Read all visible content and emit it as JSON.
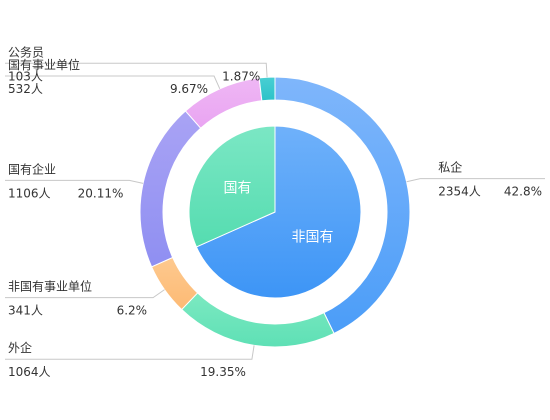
{
  "chart_data": [
    {
      "type": "pie",
      "variant": "donut",
      "series_role": "outer-ring",
      "slices": [
        {
          "name": "私企",
          "count_label": "2354人",
          "percent_label": "42.8%",
          "value": 42.8,
          "color": "#4b9df8",
          "color2": "#7fb6fb"
        },
        {
          "name": "外企",
          "count_label": "1064人",
          "percent_label": "19.35%",
          "value": 19.35,
          "color": "#5ee0b5",
          "color2": "#7ce9c1"
        },
        {
          "name": "非国有事业单位",
          "count_label": "341人",
          "percent_label": "6.2%",
          "value": 6.2,
          "color": "#fdba74",
          "color2": "#fdc98f"
        },
        {
          "name": "国有企业",
          "count_label": "1106人",
          "percent_label": "20.11%",
          "value": 20.11,
          "color": "#8f8ff2",
          "color2": "#a9a3f4"
        },
        {
          "name": "国有事业单位",
          "count_label": "532人",
          "percent_label": "9.67%",
          "value": 9.67,
          "color": "#e9a4f2",
          "color2": "#efb7f4"
        },
        {
          "name": "公务员",
          "count_label": "103人",
          "percent_label": "1.87%",
          "value": 1.87,
          "color": "#2cc2c8",
          "color2": "#49cfd3"
        }
      ]
    },
    {
      "type": "pie",
      "series_role": "inner-pie",
      "slices": [
        {
          "name": "非国有",
          "value": 68.35,
          "color": "#3d95f6",
          "color2": "#6fb1fa"
        },
        {
          "name": "国有",
          "value": 31.65,
          "color": "#55dcb0",
          "color2": "#7be7c4"
        }
      ]
    }
  ]
}
